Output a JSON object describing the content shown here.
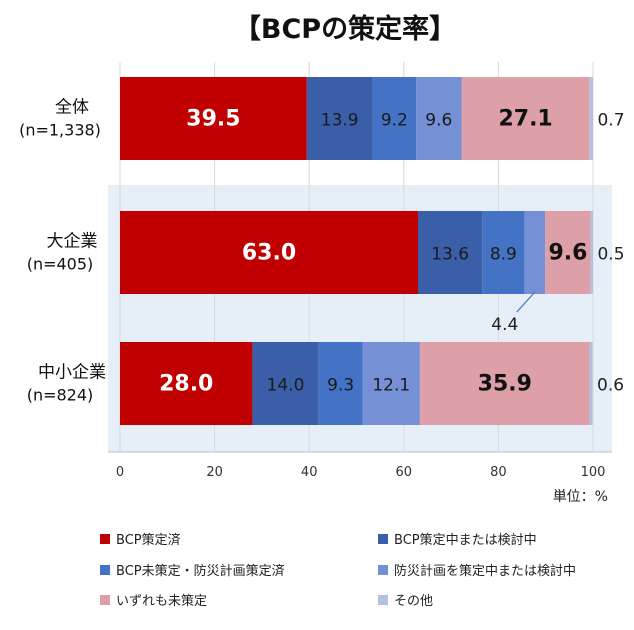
{
  "chart_data": {
    "type": "bar",
    "orientation": "horizontal",
    "stacked": true,
    "title": "【BCPの策定率】",
    "unit_label": "単位：%",
    "xlim": [
      0,
      100
    ],
    "xticks": [
      0,
      20,
      40,
      60,
      80,
      100
    ],
    "categories": [
      {
        "name": "全体",
        "n": "(n=1,338)"
      },
      {
        "name": "大企業",
        "n": "(n=405)"
      },
      {
        "name": "中小企業",
        "n": "(n=824)"
      }
    ],
    "series": [
      {
        "name": "BCP策定済",
        "color": "#c00000",
        "values": [
          39.5,
          63.0,
          28.0
        ],
        "labels": [
          "39.5",
          "63.0",
          "28.0"
        ]
      },
      {
        "name": "BCP策定中または検討中",
        "color": "#3a5ea8",
        "values": [
          13.9,
          13.6,
          14.0
        ],
        "labels": [
          "13.9",
          "13.6",
          "14.0"
        ]
      },
      {
        "name": "BCP未策定・防災計画策定済",
        "color": "#4472c4",
        "values": [
          9.2,
          8.9,
          9.3
        ],
        "labels": [
          "9.2",
          "8.9",
          "9.3"
        ]
      },
      {
        "name": "防災計画を策定中または検討中",
        "color": "#7590d4",
        "values": [
          9.6,
          4.4,
          12.1
        ],
        "labels": [
          "9.6",
          "4.4",
          "12.1"
        ]
      },
      {
        "name": "いずれも未策定",
        "color": "#dea0a8",
        "values": [
          27.1,
          9.6,
          35.9
        ],
        "labels": [
          "27.1",
          "9.6",
          "35.9"
        ]
      },
      {
        "name": "その他",
        "color": "#b4c2e0",
        "values": [
          0.7,
          0.5,
          0.6
        ],
        "labels": [
          "0.7",
          "0.5",
          "0.6"
        ]
      }
    ],
    "highlight_band_color": "#e6eef8",
    "legend_position": "bottom"
  }
}
